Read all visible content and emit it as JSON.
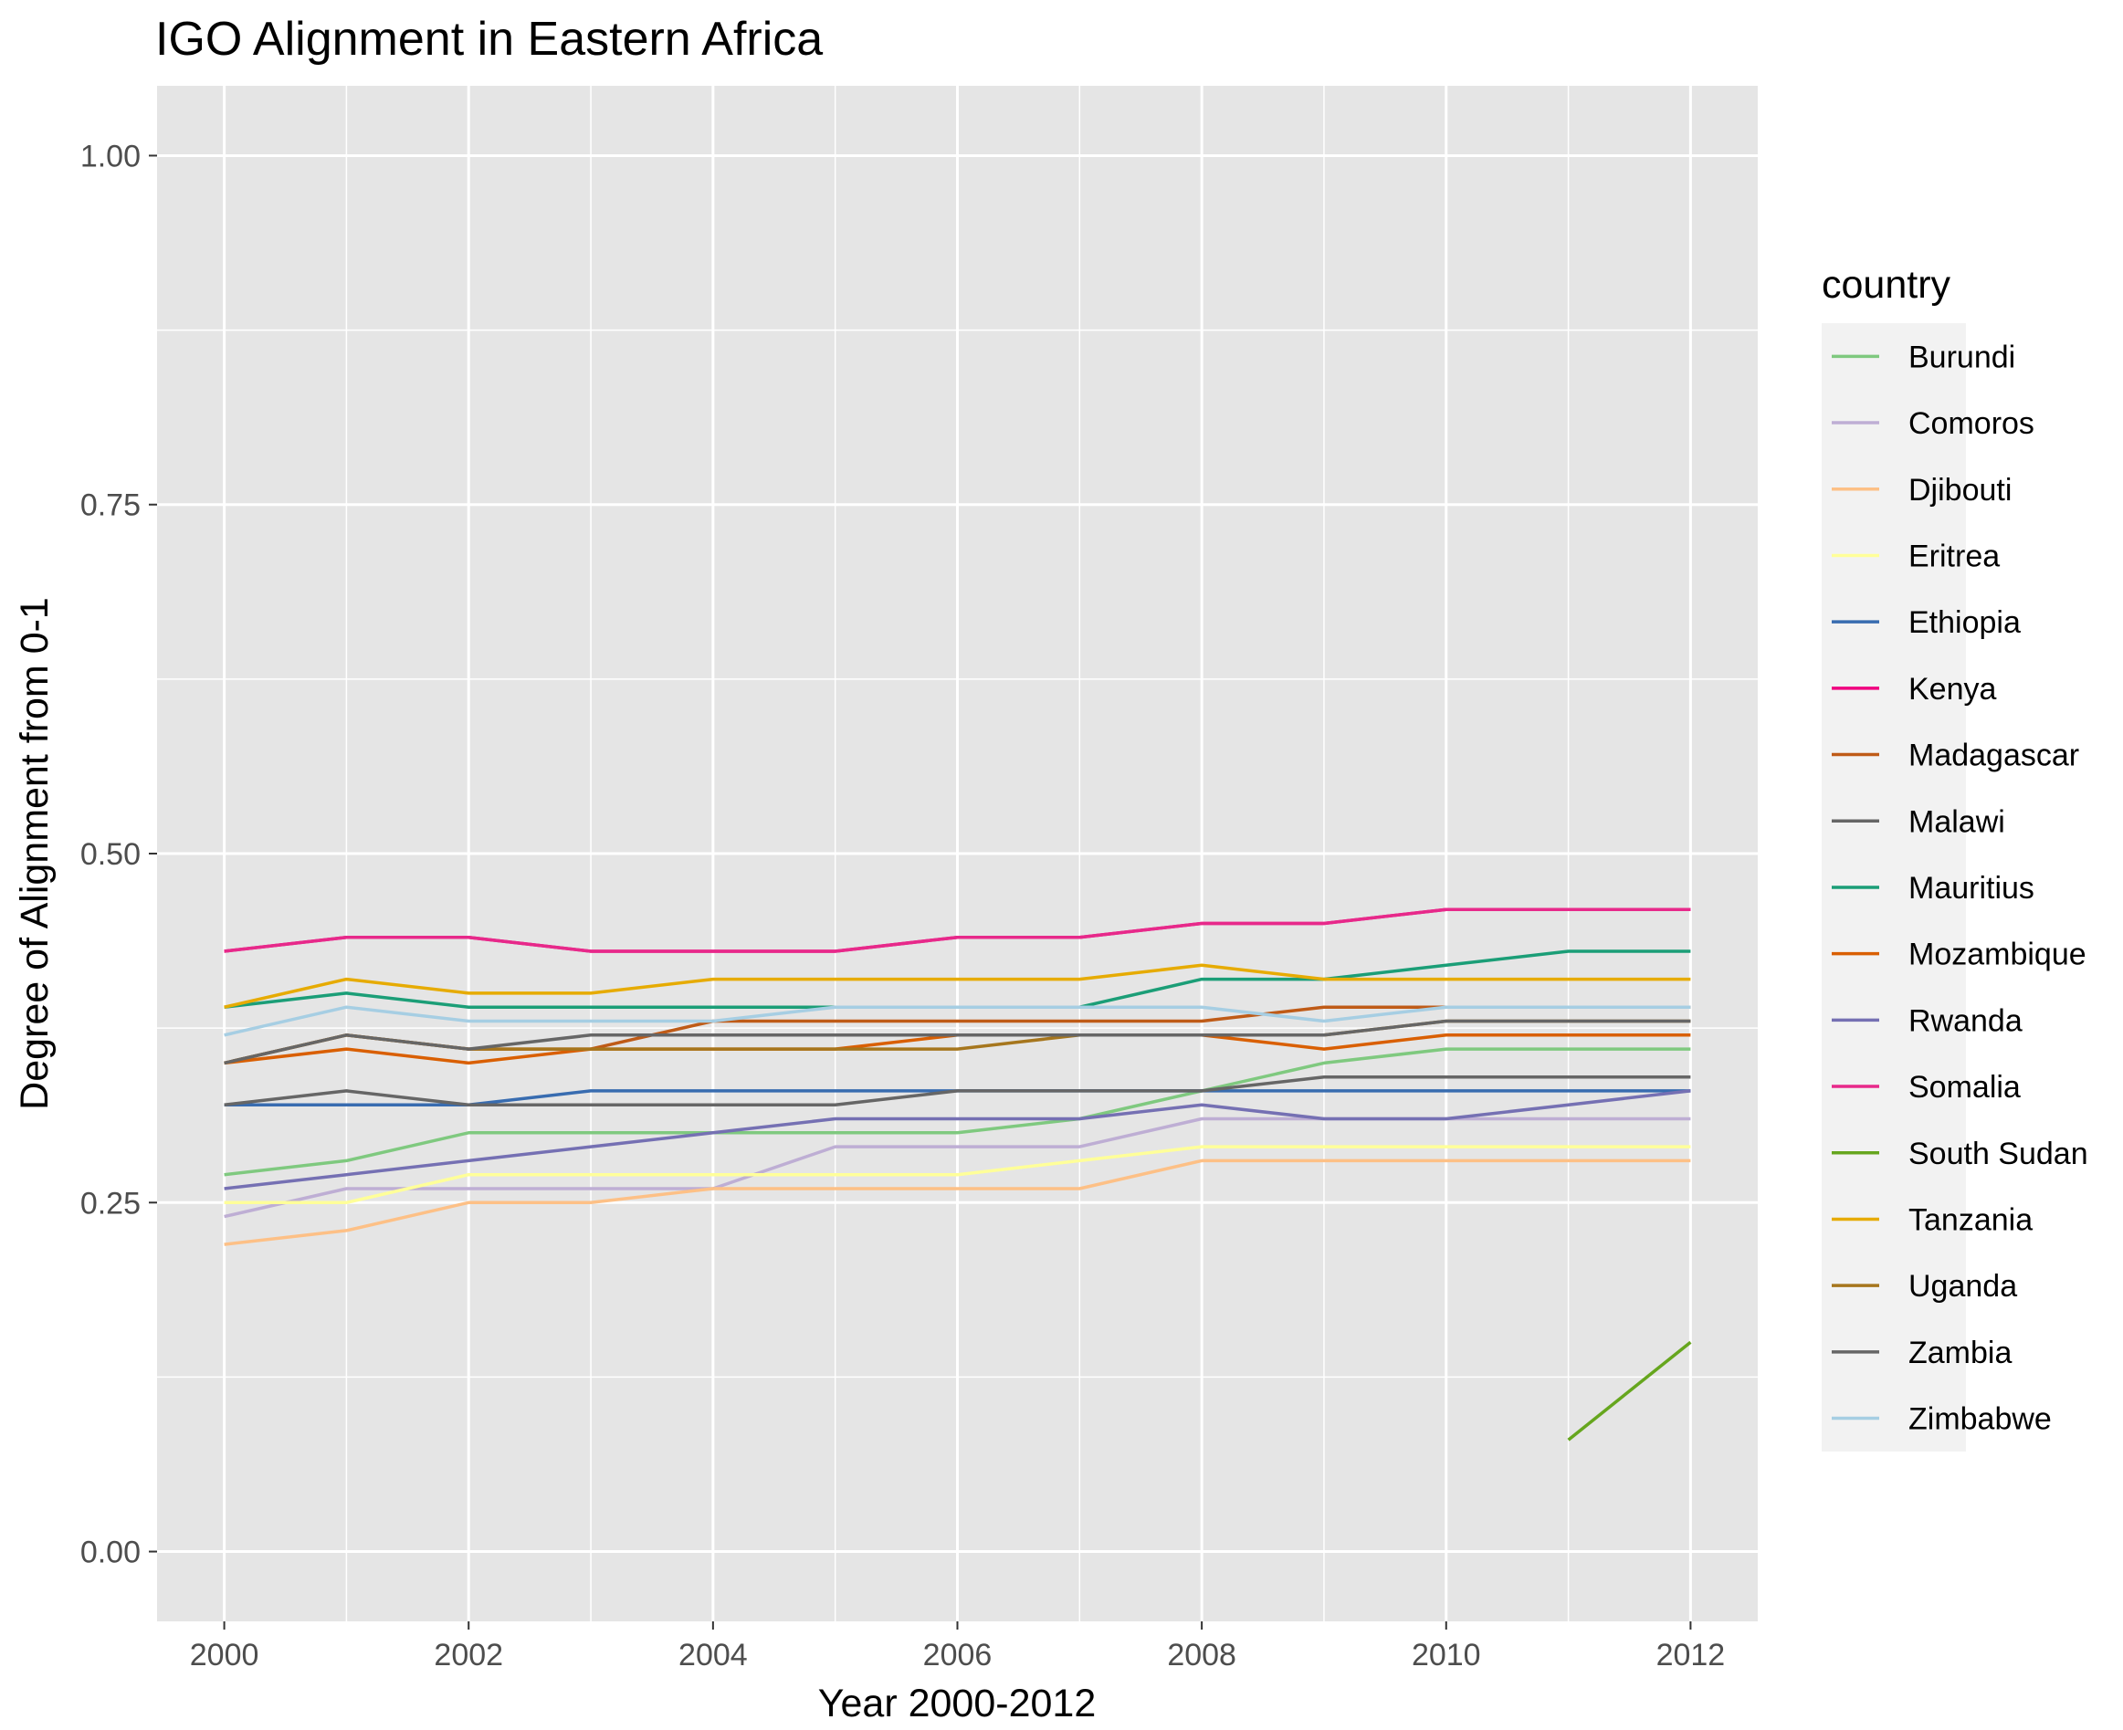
{
  "chart_data": {
    "type": "line",
    "title": "IGO Alignment in Eastern Africa",
    "xlabel": "Year 2000-2012",
    "ylabel": "Degree of Alignment from 0-1",
    "xlim": [
      1999.45,
      2012.55
    ],
    "ylim": [
      -0.05,
      1.05
    ],
    "x_ticks": [
      2000,
      2002,
      2004,
      2006,
      2008,
      2010,
      2012
    ],
    "x_tick_labels": [
      "2000",
      "2002",
      "2004",
      "2006",
      "2008",
      "2010",
      "2012"
    ],
    "y_ticks": [
      0,
      0.25,
      0.5,
      0.75,
      1
    ],
    "y_tick_labels": [
      "0.00",
      "0.25",
      "0.50",
      "0.75",
      "1.00"
    ],
    "grid": true,
    "panel_background": "#e5e5e5",
    "grid_color": "#ffffff",
    "legend_title": "country",
    "legend_position": "right",
    "x": [
      2000,
      2001,
      2002,
      2003,
      2004,
      2005,
      2006,
      2007,
      2008,
      2009,
      2010,
      2011,
      2012
    ],
    "series": [
      {
        "name": "Burundi",
        "color": "#7fc97f",
        "values": [
          0.27,
          0.28,
          0.3,
          0.3,
          0.3,
          0.3,
          0.3,
          0.31,
          0.33,
          0.35,
          0.36,
          0.36,
          0.36
        ]
      },
      {
        "name": "Comoros",
        "color": "#beaed4",
        "values": [
          0.24,
          0.26,
          0.26,
          0.26,
          0.26,
          0.29,
          0.29,
          0.29,
          0.31,
          0.31,
          0.31,
          0.31,
          0.31
        ]
      },
      {
        "name": "Djibouti",
        "color": "#fdc086",
        "values": [
          0.22,
          0.23,
          0.25,
          0.25,
          0.26,
          0.26,
          0.26,
          0.26,
          0.28,
          0.28,
          0.28,
          0.28,
          0.28
        ]
      },
      {
        "name": "Eritrea",
        "color": "#ffff99",
        "values": [
          0.25,
          0.25,
          0.27,
          0.27,
          0.27,
          0.27,
          0.27,
          0.28,
          0.29,
          0.29,
          0.29,
          0.29,
          0.29
        ]
      },
      {
        "name": "Ethiopia",
        "color": "#386cb0",
        "values": [
          0.32,
          0.32,
          0.32,
          0.33,
          0.33,
          0.33,
          0.33,
          0.33,
          0.33,
          0.33,
          0.33,
          0.33,
          0.33
        ]
      },
      {
        "name": "Kenya",
        "color": "#f0027f",
        "values": [
          0.43,
          0.44,
          0.44,
          0.43,
          0.43,
          0.43,
          0.44,
          0.44,
          0.45,
          0.45,
          0.46,
          0.46,
          0.46
        ]
      },
      {
        "name": "Madagascar",
        "color": "#bf5b17",
        "values": [
          0.35,
          0.37,
          0.36,
          0.36,
          0.38,
          0.38,
          0.38,
          0.38,
          0.38,
          0.39,
          0.39,
          0.39,
          0.39
        ]
      },
      {
        "name": "Malawi",
        "color": "#666666",
        "values": [
          0.32,
          0.33,
          0.32,
          0.32,
          0.32,
          0.32,
          0.33,
          0.33,
          0.33,
          0.34,
          0.34,
          0.34,
          0.34
        ]
      },
      {
        "name": "Mauritius",
        "color": "#1b9e77",
        "values": [
          0.39,
          0.4,
          0.39,
          0.39,
          0.39,
          0.39,
          0.39,
          0.39,
          0.41,
          0.41,
          0.42,
          0.43,
          0.43
        ]
      },
      {
        "name": "Mozambique",
        "color": "#d95f02",
        "values": [
          0.35,
          0.36,
          0.35,
          0.36,
          0.36,
          0.36,
          0.37,
          0.37,
          0.37,
          0.36,
          0.37,
          0.37,
          0.37
        ]
      },
      {
        "name": "Rwanda",
        "color": "#7570b3",
        "values": [
          0.26,
          0.27,
          0.28,
          0.29,
          0.3,
          0.31,
          0.31,
          0.31,
          0.32,
          0.31,
          0.31,
          0.32,
          0.33
        ]
      },
      {
        "name": "Somalia",
        "color": "#e7298a",
        "values": [
          0.43,
          0.44,
          0.44,
          0.43,
          0.43,
          0.43,
          0.44,
          0.44,
          0.45,
          0.45,
          0.46,
          0.46,
          0.46
        ]
      },
      {
        "name": "South Sudan",
        "color": "#66a61e",
        "values": [
          null,
          null,
          null,
          null,
          null,
          null,
          null,
          null,
          null,
          null,
          null,
          0.08,
          0.15
        ]
      },
      {
        "name": "Tanzania",
        "color": "#e6ab02",
        "values": [
          0.39,
          0.41,
          0.4,
          0.4,
          0.41,
          0.41,
          0.41,
          0.41,
          0.42,
          0.41,
          0.41,
          0.41,
          0.41
        ]
      },
      {
        "name": "Uganda",
        "color": "#a6761d",
        "values": [
          0.35,
          0.37,
          0.36,
          0.36,
          0.36,
          0.36,
          0.36,
          0.37,
          0.37,
          0.37,
          0.38,
          0.38,
          0.38
        ]
      },
      {
        "name": "Zambia",
        "color": "#666666",
        "values": [
          0.35,
          0.37,
          0.36,
          0.37,
          0.37,
          0.37,
          0.37,
          0.37,
          0.37,
          0.37,
          0.38,
          0.38,
          0.38
        ]
      },
      {
        "name": "Zimbabwe",
        "color": "#a6cee3",
        "values": [
          0.37,
          0.39,
          0.38,
          0.38,
          0.38,
          0.39,
          0.39,
          0.39,
          0.39,
          0.38,
          0.39,
          0.39,
          0.39
        ]
      }
    ]
  }
}
